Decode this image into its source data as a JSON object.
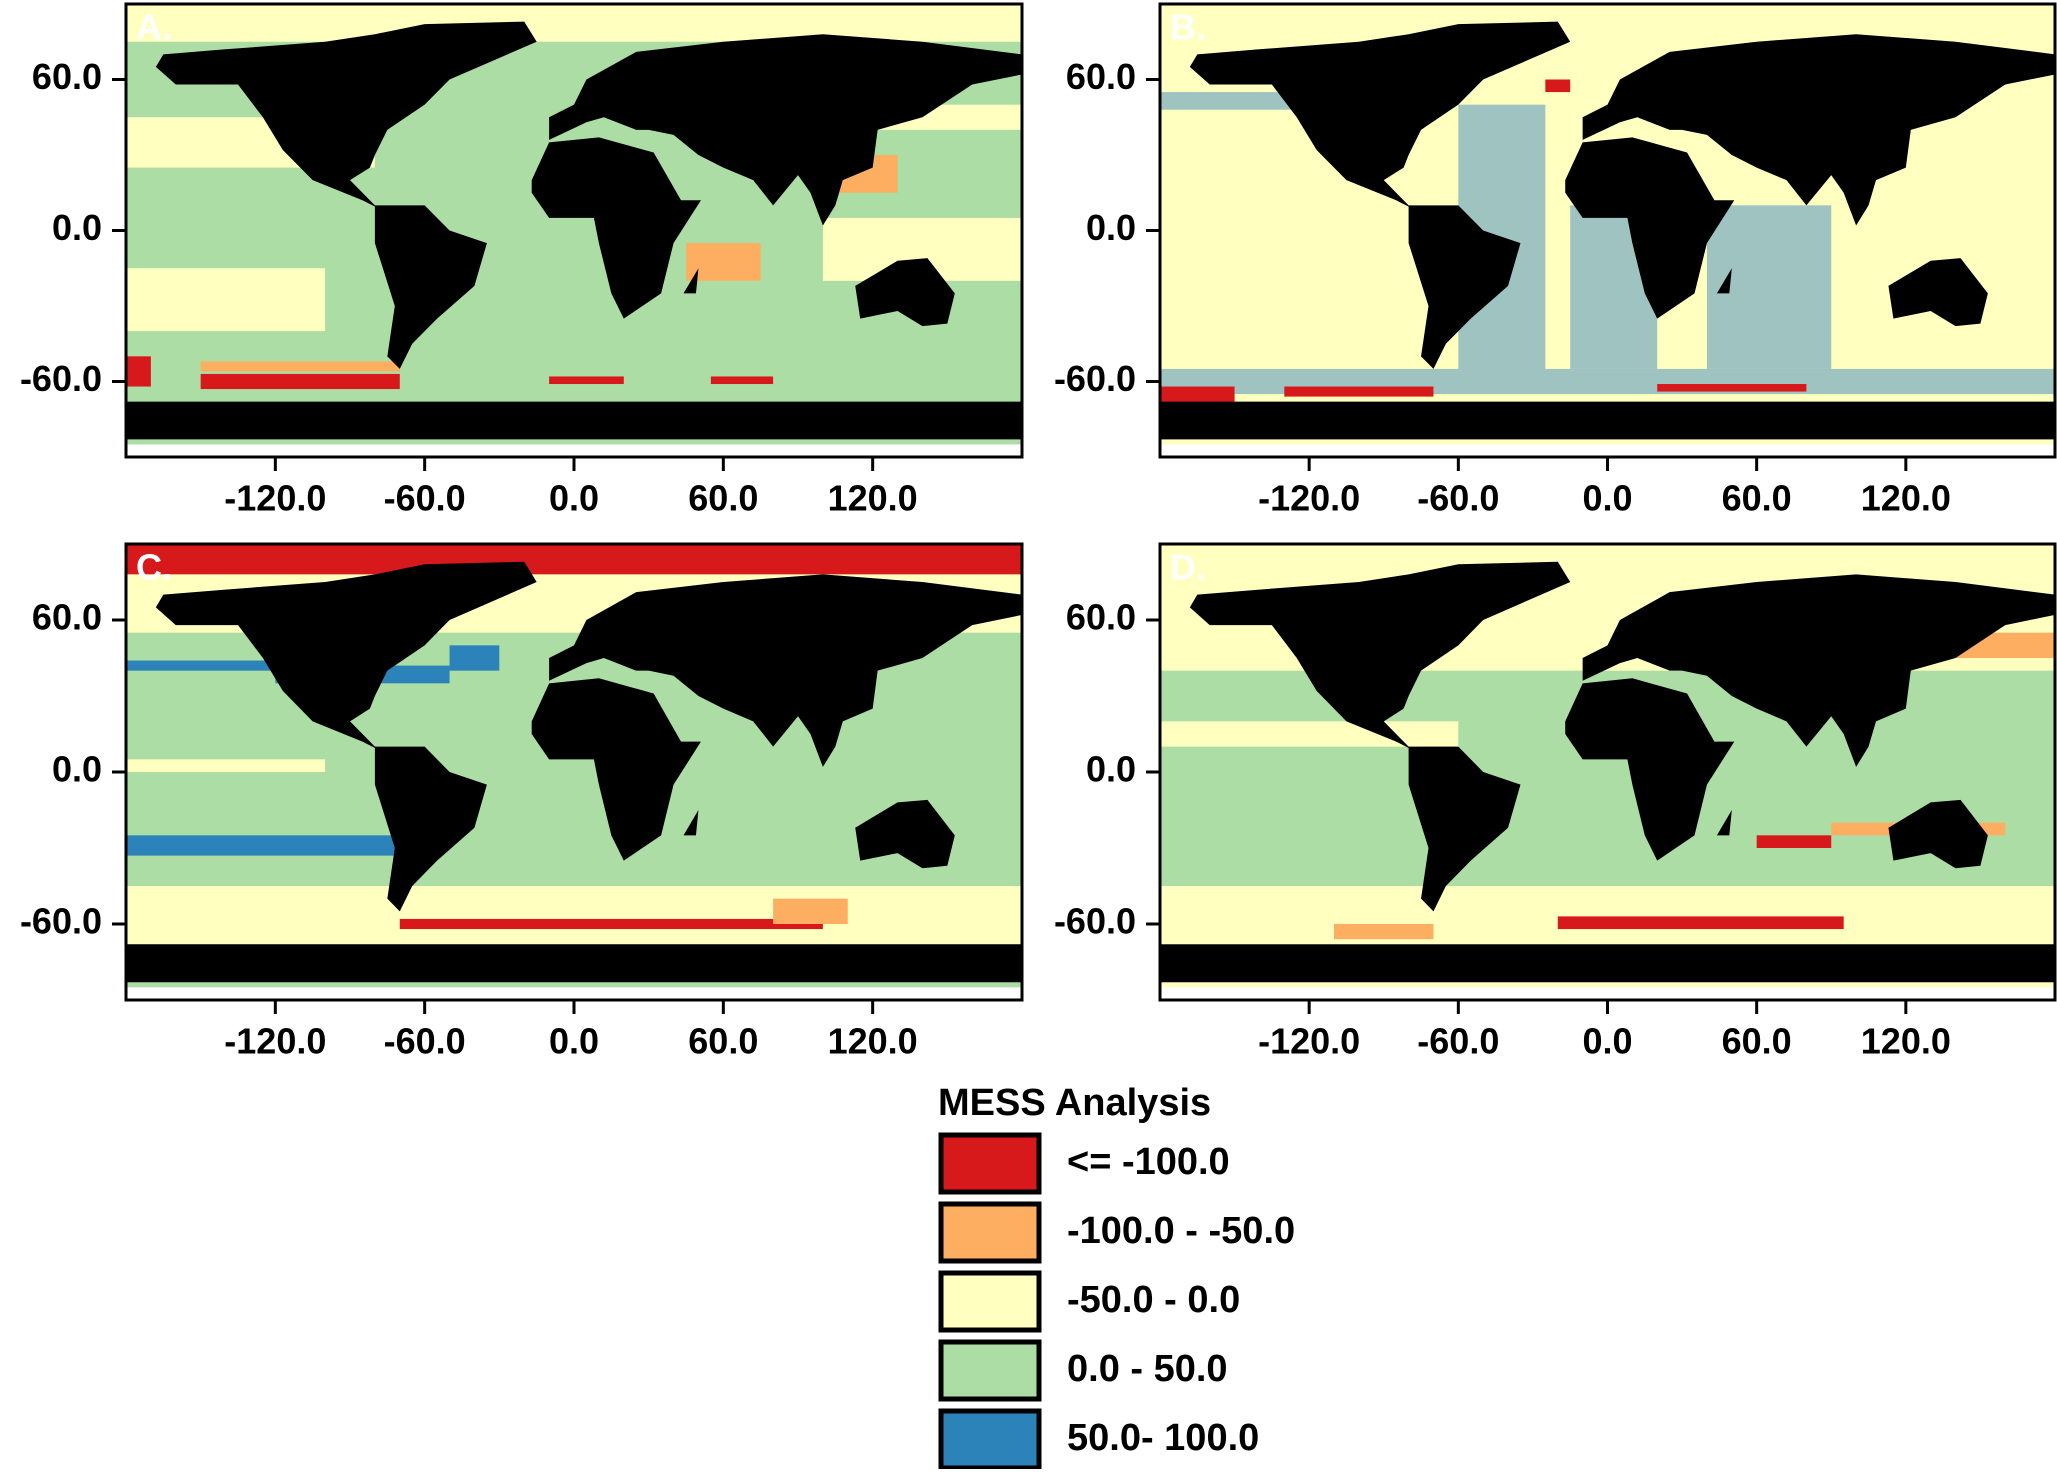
{
  "panels": [
    {
      "label": "A.",
      "xlim": [
        -180,
        180
      ],
      "ylim": [
        -90,
        90
      ],
      "xticks": [
        {
          "value": -120,
          "label": "-120.0"
        },
        {
          "value": -60,
          "label": "-60.0"
        },
        {
          "value": 0,
          "label": "0.0"
        },
        {
          "value": 60,
          "label": "60.0"
        },
        {
          "value": 120,
          "label": "120.0"
        }
      ],
      "yticks": [
        {
          "value": 60,
          "label": "60.0"
        },
        {
          "value": 0,
          "label": "0.0"
        },
        {
          "value": -60,
          "label": "-60.0"
        }
      ]
    },
    {
      "label": "B.",
      "xlim": [
        -180,
        180
      ],
      "ylim": [
        -90,
        90
      ],
      "xticks": [
        {
          "value": -120,
          "label": "-120.0"
        },
        {
          "value": -60,
          "label": "-60.0"
        },
        {
          "value": 0,
          "label": "0.0"
        },
        {
          "value": 60,
          "label": "60.0"
        },
        {
          "value": 120,
          "label": "120.0"
        }
      ],
      "yticks": [
        {
          "value": 60,
          "label": "60.0"
        },
        {
          "value": 0,
          "label": "0.0"
        },
        {
          "value": -60,
          "label": "-60.0"
        }
      ]
    },
    {
      "label": "C.",
      "xlim": [
        -180,
        180
      ],
      "ylim": [
        -90,
        90
      ],
      "xticks": [
        {
          "value": -120,
          "label": "-120.0"
        },
        {
          "value": -60,
          "label": "-60.0"
        },
        {
          "value": 0,
          "label": "0.0"
        },
        {
          "value": 60,
          "label": "60.0"
        },
        {
          "value": 120,
          "label": "120.0"
        }
      ],
      "yticks": [
        {
          "value": 60,
          "label": "60.0"
        },
        {
          "value": 0,
          "label": "0.0"
        },
        {
          "value": -60,
          "label": "-60.0"
        }
      ]
    },
    {
      "label": "D.",
      "xlim": [
        -180,
        180
      ],
      "ylim": [
        -90,
        90
      ],
      "xticks": [
        {
          "value": -120,
          "label": "-120.0"
        },
        {
          "value": -60,
          "label": "-60.0"
        },
        {
          "value": 0,
          "label": "0.0"
        },
        {
          "value": 60,
          "label": "60.0"
        },
        {
          "value": 120,
          "label": "120.0"
        }
      ],
      "yticks": [
        {
          "value": 60,
          "label": "60.0"
        },
        {
          "value": 0,
          "label": "0.0"
        },
        {
          "value": -60,
          "label": "-60.0"
        }
      ]
    }
  ],
  "legend": {
    "title": "MESS Analysis",
    "items": [
      {
        "label": "<= -100.0",
        "color": "#d7191c"
      },
      {
        "label": "-100.0 - -50.0",
        "color": "#fdae61"
      },
      {
        "label": "-50.0 - 0.0",
        "color": "#ffffbf"
      },
      {
        "label": "0.0 - 50.0",
        "color": "#abdda4"
      },
      {
        "label": "50.0- 100.0",
        "color": "#2b83ba"
      }
    ]
  }
}
